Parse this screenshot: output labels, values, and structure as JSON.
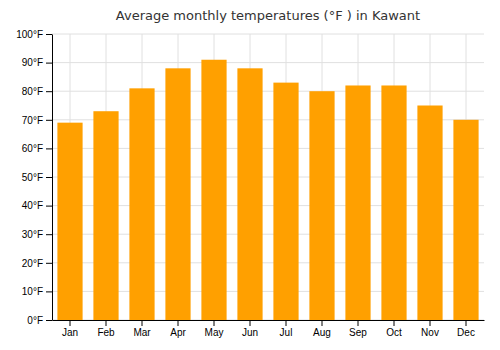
{
  "chart_data": {
    "type": "bar",
    "title": "Average monthly temperatures (°F ) in Kawant",
    "categories": [
      "Jan",
      "Feb",
      "Mar",
      "Apr",
      "May",
      "Jun",
      "Jul",
      "Aug",
      "Sep",
      "Oct",
      "Nov",
      "Dec"
    ],
    "values": [
      69,
      73,
      81,
      88,
      91,
      88,
      83,
      80,
      82,
      82,
      75,
      70
    ],
    "color": "#FFA000",
    "ylim": [
      0,
      100
    ],
    "yticks": [
      {
        "value": 0,
        "label": "0°F"
      },
      {
        "value": 10,
        "label": "10°F"
      },
      {
        "value": 20,
        "label": "20°F"
      },
      {
        "value": 30,
        "label": "30°F"
      },
      {
        "value": 40,
        "label": "40°F"
      },
      {
        "value": 50,
        "label": "50°F"
      },
      {
        "value": 60,
        "label": "60°F"
      },
      {
        "value": 70,
        "label": "70°F"
      },
      {
        "value": 80,
        "label": "80°F"
      },
      {
        "value": 90,
        "label": "90°F"
      },
      {
        "value": 100,
        "label": "100°F"
      }
    ],
    "grid": true
  }
}
